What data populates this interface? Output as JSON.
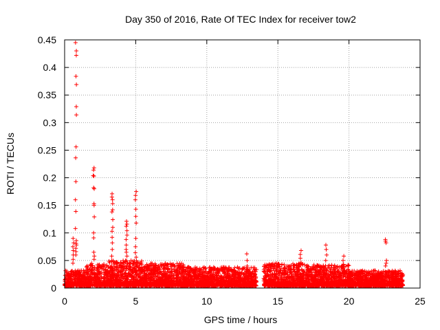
{
  "chart_data": {
    "type": "scatter",
    "title": "Day 350 of 2016, Rate Of TEC Index for receiver tow2",
    "xlabel": "GPS time / hours",
    "ylabel": "ROTI / TECUs",
    "xlim": [
      0,
      25
    ],
    "ylim": [
      0,
      0.45
    ],
    "x_ticks": [
      "0",
      "5",
      "10",
      "15",
      "20",
      "25"
    ],
    "y_ticks": [
      "0",
      "0.05",
      "0.1",
      "0.15",
      "0.2",
      "0.25",
      "0.3",
      "0.35",
      "0.4",
      "0.45"
    ],
    "grid": true,
    "marker": "+",
    "color": "#ff0000",
    "peaks": [
      {
        "x": 0.8,
        "values": [
          0.445,
          0.43,
          0.422,
          0.384,
          0.369,
          0.329,
          0.314,
          0.256,
          0.236,
          0.193,
          0.16,
          0.139,
          0.108,
          0.086,
          0.081,
          0.078,
          0.072,
          0.066,
          0.06
        ]
      },
      {
        "x": 0.6,
        "values": [
          0.09,
          0.082,
          0.075,
          0.068,
          0.06,
          0.052,
          0.045
        ]
      },
      {
        "x": 2.05,
        "values": [
          0.218,
          0.214,
          0.204,
          0.203,
          0.182,
          0.18,
          0.153,
          0.15,
          0.129,
          0.1,
          0.091,
          0.065,
          0.058,
          0.052
        ]
      },
      {
        "x": 3.35,
        "values": [
          0.171,
          0.165,
          0.16,
          0.153,
          0.142,
          0.138,
          0.124,
          0.11,
          0.103,
          0.092,
          0.082,
          0.07,
          0.058,
          0.05
        ]
      },
      {
        "x": 4.35,
        "values": [
          0.121,
          0.116,
          0.112,
          0.104,
          0.096,
          0.088,
          0.078,
          0.07,
          0.065,
          0.058
        ]
      },
      {
        "x": 5.0,
        "values": [
          0.175,
          0.168,
          0.16,
          0.143,
          0.13,
          0.118,
          0.09,
          0.075,
          0.064,
          0.056
        ]
      },
      {
        "x": 12.85,
        "values": [
          0.062,
          0.05,
          0.04
        ]
      },
      {
        "x": 16.6,
        "values": [
          0.068,
          0.061,
          0.054,
          0.046
        ]
      },
      {
        "x": 18.4,
        "values": [
          0.078,
          0.07,
          0.06,
          0.05
        ]
      },
      {
        "x": 19.6,
        "values": [
          0.058,
          0.05,
          0.043
        ]
      },
      {
        "x": 22.6,
        "values": [
          0.088,
          0.085,
          0.082,
          0.05,
          0.045,
          0.04
        ]
      }
    ],
    "baseline_segments": [
      {
        "x": [
          0.0,
          1.5
        ],
        "max": 0.032
      },
      {
        "x": [
          1.5,
          3.0
        ],
        "max": 0.045
      },
      {
        "x": [
          3.0,
          5.5
        ],
        "max": 0.05
      },
      {
        "x": [
          5.5,
          8.5
        ],
        "max": 0.045
      },
      {
        "x": [
          8.5,
          13.5
        ],
        "max": 0.038
      },
      {
        "x": [
          14.0,
          17.0
        ],
        "max": 0.045
      },
      {
        "x": [
          17.0,
          20.0
        ],
        "max": 0.042
      },
      {
        "x": [
          20.0,
          23.8
        ],
        "max": 0.032
      }
    ],
    "data_gap": [
      13.5,
      14.0
    ]
  }
}
